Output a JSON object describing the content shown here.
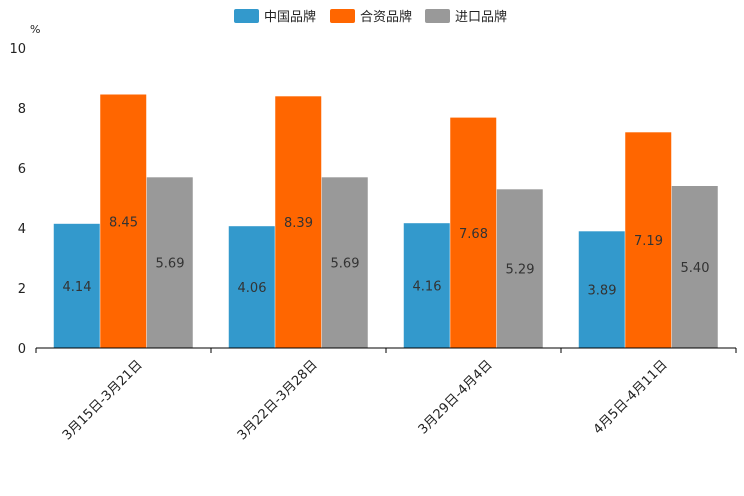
{
  "chart_data": {
    "type": "bar",
    "title": "",
    "xlabel": "",
    "ylabel": "%",
    "ylim": [
      0,
      10
    ],
    "yticks": [
      0,
      2,
      4,
      6,
      8,
      10
    ],
    "grid": false,
    "legend_position": "top-center",
    "categories": [
      "3月15日-3月21日",
      "3月22日-3月28日",
      "3月29日-4月4日",
      "4月5日-4月11日"
    ],
    "series": [
      {
        "name": "中国品牌",
        "color": "#3399cc",
        "values": [
          4.14,
          4.06,
          4.16,
          3.89
        ],
        "labels": [
          "4.14",
          "4.06",
          "4.16",
          "3.89"
        ]
      },
      {
        "name": "合资品牌",
        "color": "#ff6600",
        "values": [
          8.45,
          8.39,
          7.68,
          7.19
        ],
        "labels": [
          "8.45",
          "8.39",
          "7.68",
          "7.19"
        ]
      },
      {
        "name": "进口品牌",
        "color": "#999999",
        "values": [
          5.69,
          5.69,
          5.29,
          5.4
        ],
        "labels": [
          "5.69",
          "5.69",
          "5.29",
          "5.40"
        ]
      }
    ]
  }
}
